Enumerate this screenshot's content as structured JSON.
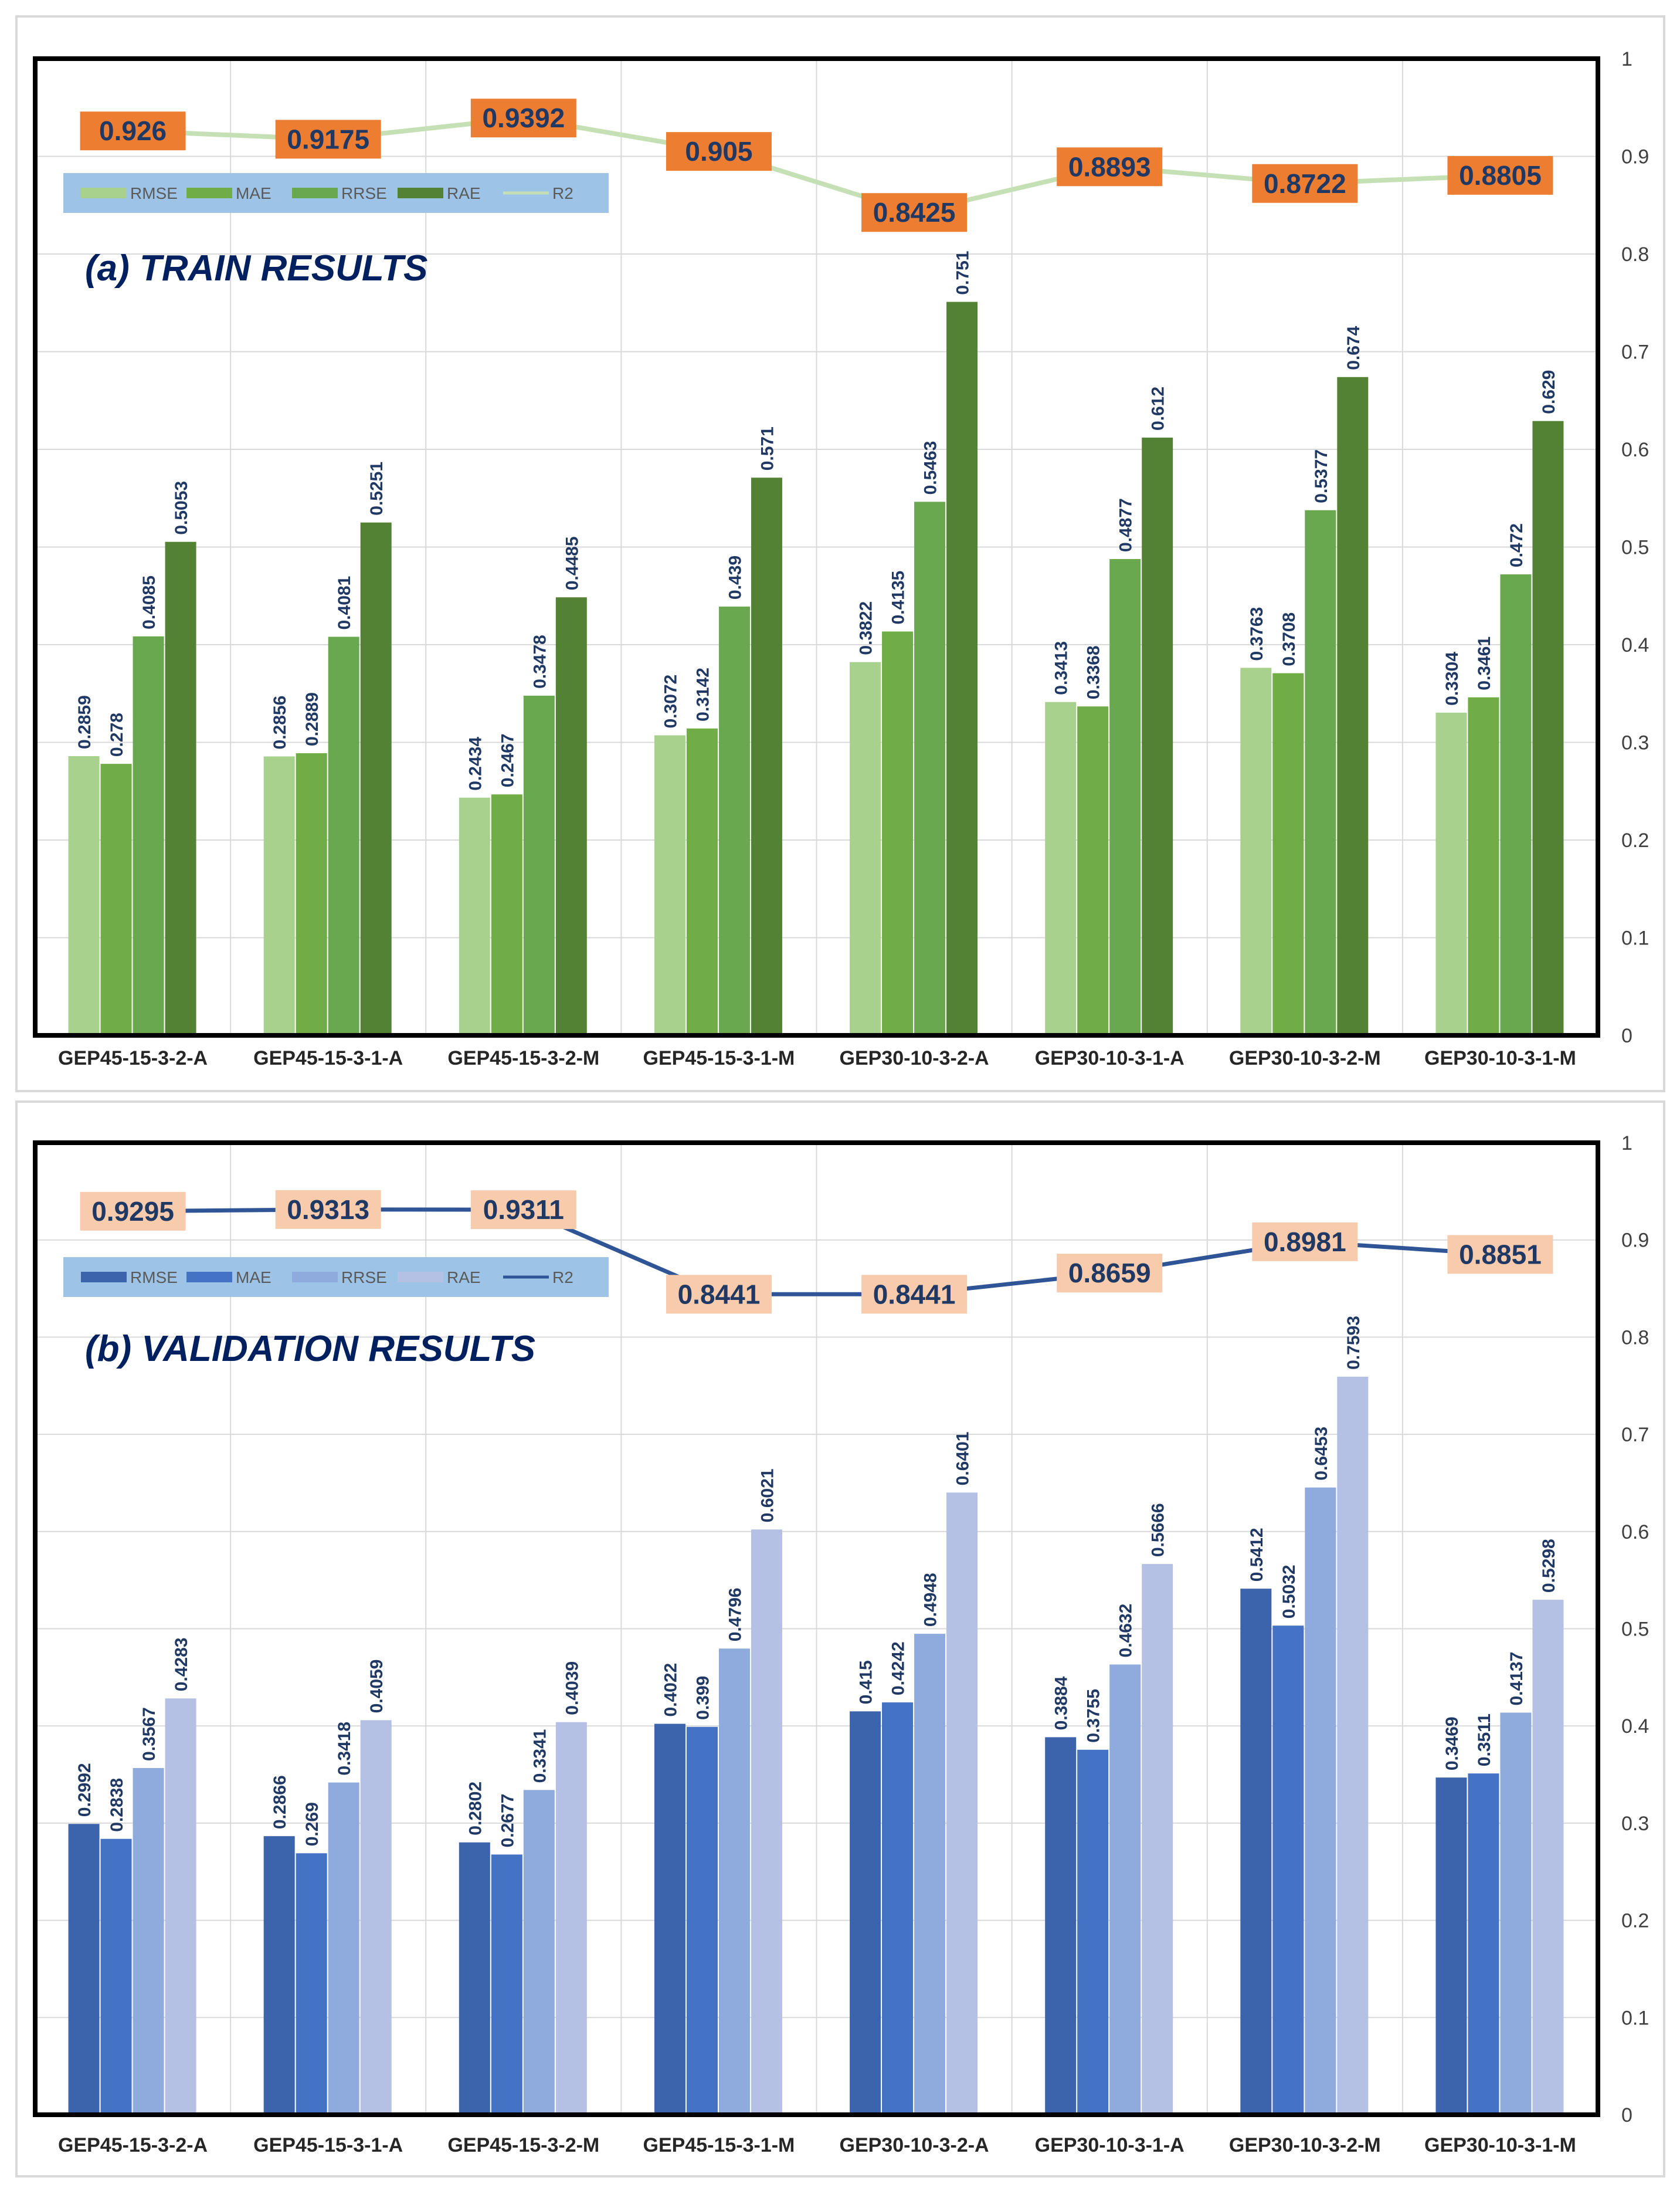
{
  "chart_data": [
    {
      "type": "bar",
      "title": "(a) TRAIN RESULTS",
      "categories": [
        "GEP45-15-3-2-A",
        "GEP45-15-3-1-A",
        "GEP45-15-3-2-M",
        "GEP45-15-3-1-M",
        "GEP30-10-3-2-A",
        "GEP30-10-3-1-A",
        "GEP30-10-3-2-M",
        "GEP30-10-3-1-M"
      ],
      "ylim": [
        0,
        1
      ],
      "yticks": [
        "0",
        "0.1",
        "0.2",
        "0.3",
        "0.4",
        "0.5",
        "0.6",
        "0.7",
        "0.8",
        "0.9",
        "1"
      ],
      "legend_position": "top-left",
      "legend": [
        "RMSE",
        "MAE",
        "RRSE",
        "RAE",
        "R2"
      ],
      "series": [
        {
          "name": "RMSE",
          "color": "#a9d18e",
          "values": [
            0.2859,
            0.2856,
            0.2434,
            0.3072,
            0.3822,
            0.3413,
            0.3763,
            0.3304
          ],
          "labels": [
            "0.2859",
            "0.2856",
            "0.2434",
            "0.3072",
            "0.3822",
            "0.3413",
            "0.3763",
            "0.3304"
          ]
        },
        {
          "name": "MAE",
          "color": "#70ad47",
          "values": [
            0.278,
            0.2889,
            0.2467,
            0.3142,
            0.4135,
            0.3368,
            0.3708,
            0.3461
          ],
          "labels": [
            "0.278",
            "0.2889",
            "0.2467",
            "0.3142",
            "0.4135",
            "0.3368",
            "0.3708",
            "0.3461"
          ]
        },
        {
          "name": "RRSE",
          "color": "#6aa84f",
          "values": [
            0.4085,
            0.4081,
            0.3478,
            0.439,
            0.5463,
            0.4877,
            0.5377,
            0.472
          ],
          "labels": [
            "0.4085",
            "0.4081",
            "0.3478",
            "0.439",
            "0.5463",
            "0.4877",
            "0.5377",
            "0.472"
          ]
        },
        {
          "name": "RAE",
          "color": "#548235",
          "values": [
            0.5053,
            0.5251,
            0.4485,
            0.571,
            0.751,
            0.612,
            0.674,
            0.629
          ],
          "labels": [
            "0.5053",
            "0.5251",
            "0.4485",
            "0.571",
            "0.751",
            "0.612",
            "0.674",
            "0.629"
          ]
        }
      ],
      "line": {
        "name": "R2",
        "color": "#c5e0b4",
        "values": [
          0.926,
          0.9175,
          0.9392,
          0.905,
          0.8425,
          0.8893,
          0.8722,
          0.8805
        ],
        "labels": [
          "0.926",
          "0.9175",
          "0.9392",
          "0.905",
          "0.8425",
          "0.8893",
          "0.8722",
          "0.8805"
        ],
        "label_box_color": "#ed7d31"
      }
    },
    {
      "type": "bar",
      "title": "(b) VALIDATION RESULTS",
      "categories": [
        "GEP45-15-3-2-A",
        "GEP45-15-3-1-A",
        "GEP45-15-3-2-M",
        "GEP45-15-3-1-M",
        "GEP30-10-3-2-A",
        "GEP30-10-3-1-A",
        "GEP30-10-3-2-M",
        "GEP30-10-3-1-M"
      ],
      "ylim": [
        0,
        1
      ],
      "yticks": [
        "0",
        "0.1",
        "0.2",
        "0.3",
        "0.4",
        "0.5",
        "0.6",
        "0.7",
        "0.8",
        "0.9",
        "1"
      ],
      "legend_position": "top-left",
      "legend": [
        "RMSE",
        "MAE",
        "RRSE",
        "RAE",
        "R2"
      ],
      "series": [
        {
          "name": "RMSE",
          "color": "#3c64ad",
          "values": [
            0.2992,
            0.2866,
            0.2802,
            0.4022,
            0.415,
            0.3884,
            0.5412,
            0.3469
          ],
          "labels": [
            "0.2992",
            "0.2866",
            "0.2802",
            "0.4022",
            "0.415",
            "0.3884",
            "0.5412",
            "0.3469"
          ]
        },
        {
          "name": "MAE",
          "color": "#4472c4",
          "values": [
            0.2838,
            0.269,
            0.2677,
            0.399,
            0.4242,
            0.3755,
            0.5032,
            0.3511
          ],
          "labels": [
            "0.2838",
            "0.269",
            "0.2677",
            "0.399",
            "0.4242",
            "0.3755",
            "0.5032",
            "0.3511"
          ]
        },
        {
          "name": "RRSE",
          "color": "#8faadc",
          "values": [
            0.3567,
            0.3418,
            0.3341,
            0.4796,
            0.4948,
            0.4632,
            0.6453,
            0.4137
          ],
          "labels": [
            "0.3567",
            "0.3418",
            "0.3341",
            "0.4796",
            "0.4948",
            "0.4632",
            "0.6453",
            "0.4137"
          ]
        },
        {
          "name": "RAE",
          "color": "#b4c0e4",
          "values": [
            0.4283,
            0.4059,
            0.4039,
            0.6021,
            0.6401,
            0.5666,
            0.7593,
            0.5298
          ],
          "labels": [
            "0.4283",
            "0.4059",
            "0.4039",
            "0.6021",
            "0.6401",
            "0.5666",
            "0.7593",
            "0.5298"
          ]
        }
      ],
      "line": {
        "name": "R2",
        "color": "#2f5597",
        "values": [
          0.9295,
          0.9313,
          0.9311,
          0.8441,
          0.8441,
          0.8659,
          0.8981,
          0.8851
        ],
        "labels": [
          "0.9295",
          "0.9313",
          "0.9311",
          "0.8441",
          "0.8441",
          "0.8659",
          "0.8981",
          "0.8851"
        ],
        "label_box_color": "#f8cbad"
      }
    }
  ],
  "colors": {
    "legend_bg": "#9dc3e6",
    "frame": "#000000",
    "grid": "#d9d9d9"
  }
}
